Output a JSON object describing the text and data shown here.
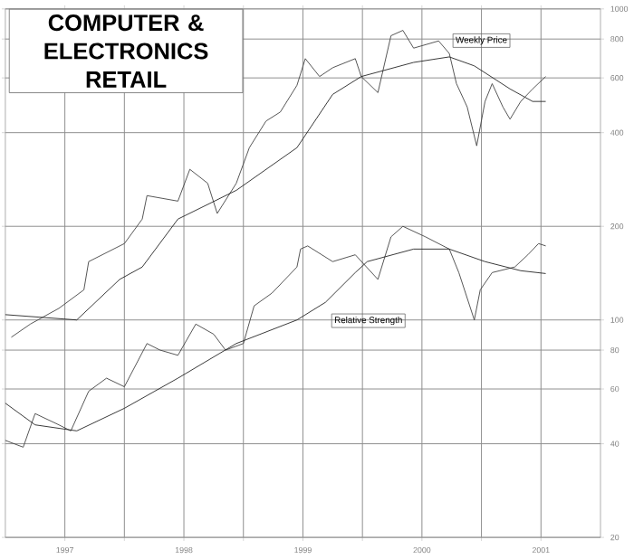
{
  "chart_data": {
    "type": "line",
    "title": "COMPUTER & ELECTRONICS RETAIL",
    "log": "y",
    "grid": true,
    "xlim": [
      1996.5,
      2001.5
    ],
    "ylim": [
      20,
      1000
    ],
    "xticks": [
      {
        "value": 1997,
        "label": "1997"
      },
      {
        "value": 1997.5,
        "label": null
      },
      {
        "value": 1998,
        "label": "1998"
      },
      {
        "value": 1998.5,
        "label": null
      },
      {
        "value": 1999,
        "label": "1999"
      },
      {
        "value": 1999.5,
        "label": null
      },
      {
        "value": 2000,
        "label": "2000"
      },
      {
        "value": 2000.5,
        "label": null
      },
      {
        "value": 2001,
        "label": "2001"
      }
    ],
    "yticks": [
      20,
      40,
      60,
      80,
      100,
      200,
      400,
      600,
      800,
      1000
    ],
    "series": [
      {
        "color": "#404040",
        "x": [
          1996.55,
          1996.71,
          1996.95,
          1997.16,
          1997.2,
          1997.5,
          1997.65,
          1997.69,
          1997.95,
          1998.05,
          1998.2,
          1998.28,
          1998.44,
          1998.55,
          1998.69,
          1998.81,
          1998.95,
          1999.02,
          1999.14,
          1999.25,
          1999.44,
          1999.49,
          1999.63,
          1999.74,
          1999.84,
          1999.93,
          2000.14,
          2000.23,
          2000.29,
          2000.38,
          2000.46,
          2000.53,
          2000.59,
          2000.68,
          2000.74,
          2000.83,
          2000.93,
          2001.04
        ],
        "values": [
          88,
          97,
          109,
          125,
          154,
          176,
          211,
          251,
          241,
          305,
          275,
          220,
          275,
          358,
          436,
          466,
          568,
          692,
          606,
          647,
          692,
          606,
          538,
          820,
          853,
          748,
          789,
          719,
          575,
          484,
          363,
          504,
          575,
          484,
          442,
          504,
          553,
          606
        ]
      },
      {
        "color": "#202020",
        "x": [
          1996.5,
          1997.1,
          1997.46,
          1997.65,
          1997.95,
          1998.44,
          1998.95,
          1999.25,
          1999.49,
          1999.93,
          2000.23,
          2000.44,
          2000.74,
          2000.93,
          2001.04
        ],
        "values": [
          104,
          100,
          135,
          148,
          211,
          261,
          358,
          531,
          606,
          673,
          701,
          656,
          553,
          504,
          504
        ]
      },
      {
        "color": "#404040",
        "x": [
          1996.5,
          1996.65,
          1996.75,
          1996.95,
          1997.05,
          1997.2,
          1997.35,
          1997.5,
          1997.69,
          1997.8,
          1997.95,
          1998.1,
          1998.25,
          1998.35,
          1998.5,
          1998.59,
          1998.74,
          1998.95,
          1998.98,
          1999.04,
          1999.25,
          1999.44,
          1999.63,
          1999.74,
          1999.84,
          2000.03,
          2000.23,
          2000.31,
          2000.44,
          2000.49,
          2000.59,
          2000.78,
          2000.89,
          2000.98,
          2001.04
        ],
        "values": [
          41,
          39,
          50,
          46,
          44,
          59,
          65,
          61,
          84,
          80,
          77,
          97,
          90,
          80,
          84,
          111,
          122,
          148,
          169,
          173,
          154,
          162,
          135,
          185,
          200,
          185,
          169,
          142,
          100,
          125,
          142,
          148,
          162,
          176,
          173
        ]
      },
      {
        "color": "#202020",
        "x": [
          1996.5,
          1996.75,
          1997.1,
          1997.5,
          1997.95,
          1998.44,
          1998.95,
          1999.19,
          1999.44,
          1999.54,
          1999.93,
          2000.23,
          2000.53,
          2000.83,
          2001.04
        ],
        "values": [
          54,
          46,
          44,
          52,
          65,
          84,
          100,
          114,
          142,
          154,
          169,
          169,
          154,
          144,
          141
        ]
      }
    ],
    "annotations": [
      "Weekly Price",
      "Relative Strength"
    ]
  }
}
